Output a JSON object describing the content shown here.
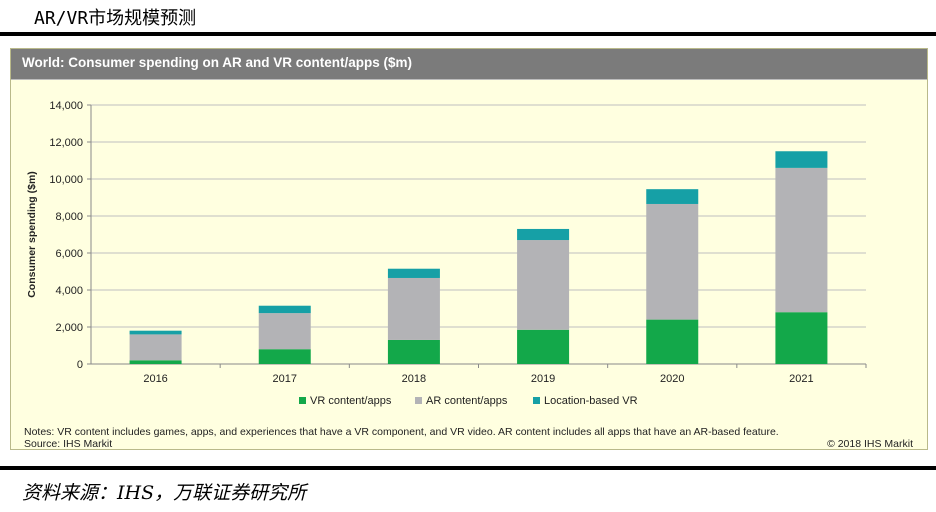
{
  "report_title": "AR/VR市场规模预测",
  "panel_title": "World: Consumer spending on AR and VR content/apps ($m)",
  "notes_line1": "Notes: VR content includes games, apps, and experiences that have a VR component, and VR video. AR content includes all apps that have an AR-based feature.",
  "notes_line2": "Source: IHS Markit",
  "copyright": "© 2018 IHS Markit",
  "source_cn": "资料来源：IHS，万联证券研究所",
  "colors": {
    "vr": "#13a84a",
    "ar": "#b3b3b6",
    "location": "#16a0a6",
    "header": "#7b7b7b",
    "panel": "#ffffe0"
  },
  "chart_data": {
    "type": "bar",
    "stacked": true,
    "title": "World: Consumer spending on AR and VR content/apps ($m)",
    "ylabel": "Consumer spending ($m)",
    "xlabel": "",
    "ylim": [
      0,
      14000
    ],
    "yticks": [
      0,
      2000,
      4000,
      6000,
      8000,
      10000,
      12000,
      14000
    ],
    "ytick_labels": [
      "0",
      "2,000",
      "4,000",
      "6,000",
      "8,000",
      "10,000",
      "12,000",
      "14,000"
    ],
    "grid": true,
    "legend_position": "bottom",
    "categories": [
      "2016",
      "2017",
      "2018",
      "2019",
      "2020",
      "2021"
    ],
    "series": [
      {
        "name": "VR content/apps",
        "color": "#13a84a",
        "values": [
          200,
          800,
          1300,
          1850,
          2400,
          2800
        ]
      },
      {
        "name": "AR content/apps",
        "color": "#b3b3b6",
        "values": [
          1400,
          1950,
          3350,
          4850,
          6250,
          7800
        ]
      },
      {
        "name": "Location-based VR",
        "color": "#16a0a6",
        "values": [
          200,
          400,
          500,
          600,
          800,
          900
        ]
      }
    ]
  }
}
